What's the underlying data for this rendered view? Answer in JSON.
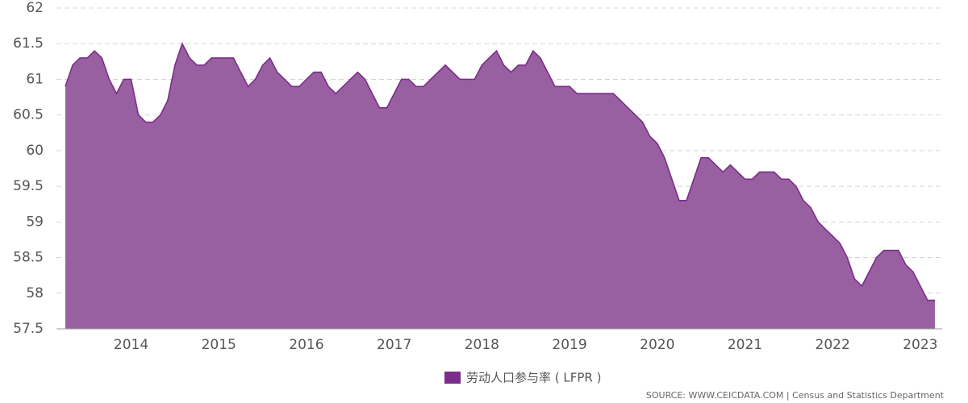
{
  "chart_data": {
    "type": "area",
    "categories": [
      null,
      null,
      null,
      null,
      null,
      null,
      null,
      null,
      null,
      "2014",
      null,
      null,
      null,
      null,
      null,
      null,
      null,
      null,
      null,
      null,
      null,
      "2015",
      null,
      null,
      null,
      null,
      null,
      null,
      null,
      null,
      null,
      null,
      null,
      "2016",
      null,
      null,
      null,
      null,
      null,
      null,
      null,
      null,
      null,
      null,
      null,
      "2017",
      null,
      null,
      null,
      null,
      null,
      null,
      null,
      null,
      null,
      null,
      null,
      "2018",
      null,
      null,
      null,
      null,
      null,
      null,
      null,
      null,
      null,
      null,
      null,
      "2019",
      null,
      null,
      null,
      null,
      null,
      null,
      null,
      null,
      null,
      null,
      null,
      "2020",
      null,
      null,
      null,
      null,
      null,
      null,
      null,
      null,
      null,
      null,
      null,
      "2021",
      null,
      null,
      null,
      null,
      null,
      null,
      null,
      null,
      null,
      null,
      null,
      "2022",
      null,
      null,
      null,
      null,
      null,
      null,
      null,
      null,
      null,
      null,
      null,
      "2023",
      null,
      null
    ],
    "series": [
      {
        "name": "劳动人口参与率 ( LFPR )",
        "color": "#7b2d8b",
        "fill": "#9960a1",
        "values": [
          60.9,
          61.2,
          61.3,
          61.3,
          61.4,
          61.3,
          61.0,
          60.8,
          61.0,
          61.0,
          60.5,
          60.4,
          60.4,
          60.5,
          60.7,
          61.2,
          61.5,
          61.3,
          61.2,
          61.2,
          61.3,
          61.3,
          61.3,
          61.3,
          61.1,
          60.9,
          61.0,
          61.2,
          61.3,
          61.1,
          61.0,
          60.9,
          60.9,
          61.0,
          61.1,
          61.1,
          60.9,
          60.8,
          60.9,
          61.0,
          61.1,
          61.0,
          60.8,
          60.6,
          60.6,
          60.8,
          61.0,
          61.0,
          60.9,
          60.9,
          61.0,
          61.1,
          61.2,
          61.1,
          61.0,
          61.0,
          61.0,
          61.2,
          61.3,
          61.4,
          61.2,
          61.1,
          61.2,
          61.2,
          61.4,
          61.3,
          61.1,
          60.9,
          60.9,
          60.9,
          60.8,
          60.8,
          60.8,
          60.8,
          60.8,
          60.8,
          60.7,
          60.6,
          60.5,
          60.4,
          60.2,
          60.1,
          59.9,
          59.6,
          59.3,
          59.3,
          59.6,
          59.9,
          59.9,
          59.8,
          59.7,
          59.8,
          59.7,
          59.6,
          59.6,
          59.7,
          59.7,
          59.7,
          59.6,
          59.6,
          59.5,
          59.3,
          59.2,
          59.0,
          58.9,
          58.8,
          58.7,
          58.5,
          58.2,
          58.1,
          58.3,
          58.5,
          58.6,
          58.6,
          58.6,
          58.4,
          58.3,
          58.1,
          57.9,
          57.9
        ]
      }
    ],
    "ylim": [
      57.5,
      62
    ],
    "yticks": [
      57.5,
      58,
      58.5,
      59,
      59.5,
      60,
      60.5,
      61,
      61.5,
      62
    ],
    "grid": true,
    "source": "SOURCE: WWW.CEICDATA.COM | Census and Statistics Department"
  }
}
